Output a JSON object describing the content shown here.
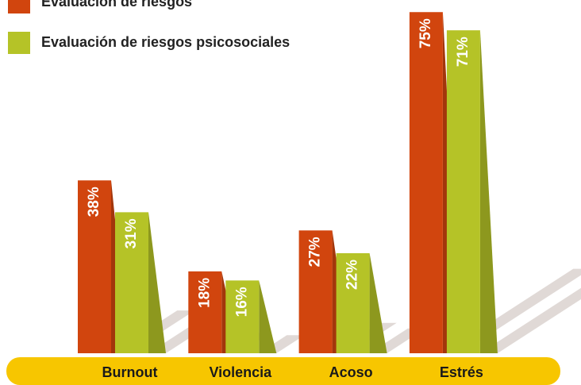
{
  "chart_data": {
    "type": "bar",
    "categories": [
      "Burnout",
      "Violencia",
      "Acoso",
      "Estrés"
    ],
    "series": [
      {
        "name": "Evaluación de riesgos",
        "color": "#d1450e",
        "values": [
          38,
          18,
          27,
          75
        ],
        "value_labels": [
          "38%",
          "18%",
          "27%",
          "75%"
        ]
      },
      {
        "name": "Evaluación de riesgos psicosociales",
        "color": "#b5c327",
        "values": [
          31,
          16,
          22,
          71
        ],
        "value_labels": [
          "31%",
          "16%",
          "22%",
          "71%"
        ]
      }
    ],
    "legend": "top-left"
  }
}
